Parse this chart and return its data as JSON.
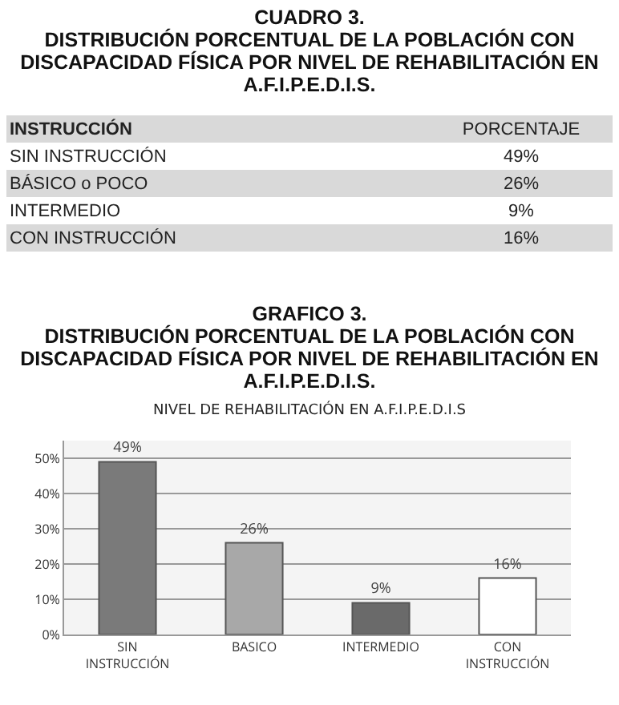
{
  "chart_data": [
    {
      "type": "other",
      "title": "CUADRO 3.\nDISTRIBUCIÓN PORCENTUAL DE LA POBLACIÓN CON DISCAPACIDAD FÍSICA POR NIVEL DE REHABILITACIÓN EN A.F.I.P.E.D.I.S.",
      "annotations": [
        "INSTRUCCIÓN",
        "PORCENTAJE",
        "SIN INSTRUCCIÓN",
        "49%",
        "BÁSICO o POCO",
        "26%",
        "INTERMEDIO",
        "9%",
        "CON INSTRUCCIÓN",
        "16%"
      ]
    },
    {
      "type": "bar",
      "title": "GRAFICO 3.\nDISTRIBUCIÓN PORCENTUAL DE LA POBLACIÓN CON DISCAPACIDAD FÍSICA POR NIVEL DE REHABILITACIÓN EN A.F.I.P.E.D.I.S.",
      "subtitle": "NIVEL DE REHABILITACIÓN EN A.F.I.P.E.D.I.S",
      "categories": [
        "SIN INSTRUCCIÓN",
        "BASICO",
        "INTERMEDIO",
        "CON INSTRUCCIÓN"
      ],
      "values": [
        49,
        26,
        9,
        16
      ],
      "colors": [
        "#7a7a7a",
        "#a8a8a8",
        "#6a6a6a",
        "#ffffff"
      ],
      "value_labels": [
        "49%",
        "26%",
        "9%",
        "16%"
      ],
      "ylim": [
        0,
        55
      ],
      "yticks": [
        {
          "value": 0,
          "label": "0%"
        },
        {
          "value": 10,
          "label": "10%"
        },
        {
          "value": 20,
          "label": "20%"
        },
        {
          "value": 30,
          "label": "30%"
        },
        {
          "value": 40,
          "label": "40%"
        },
        {
          "value": 50,
          "label": "50%"
        }
      ],
      "grid": "y"
    }
  ]
}
